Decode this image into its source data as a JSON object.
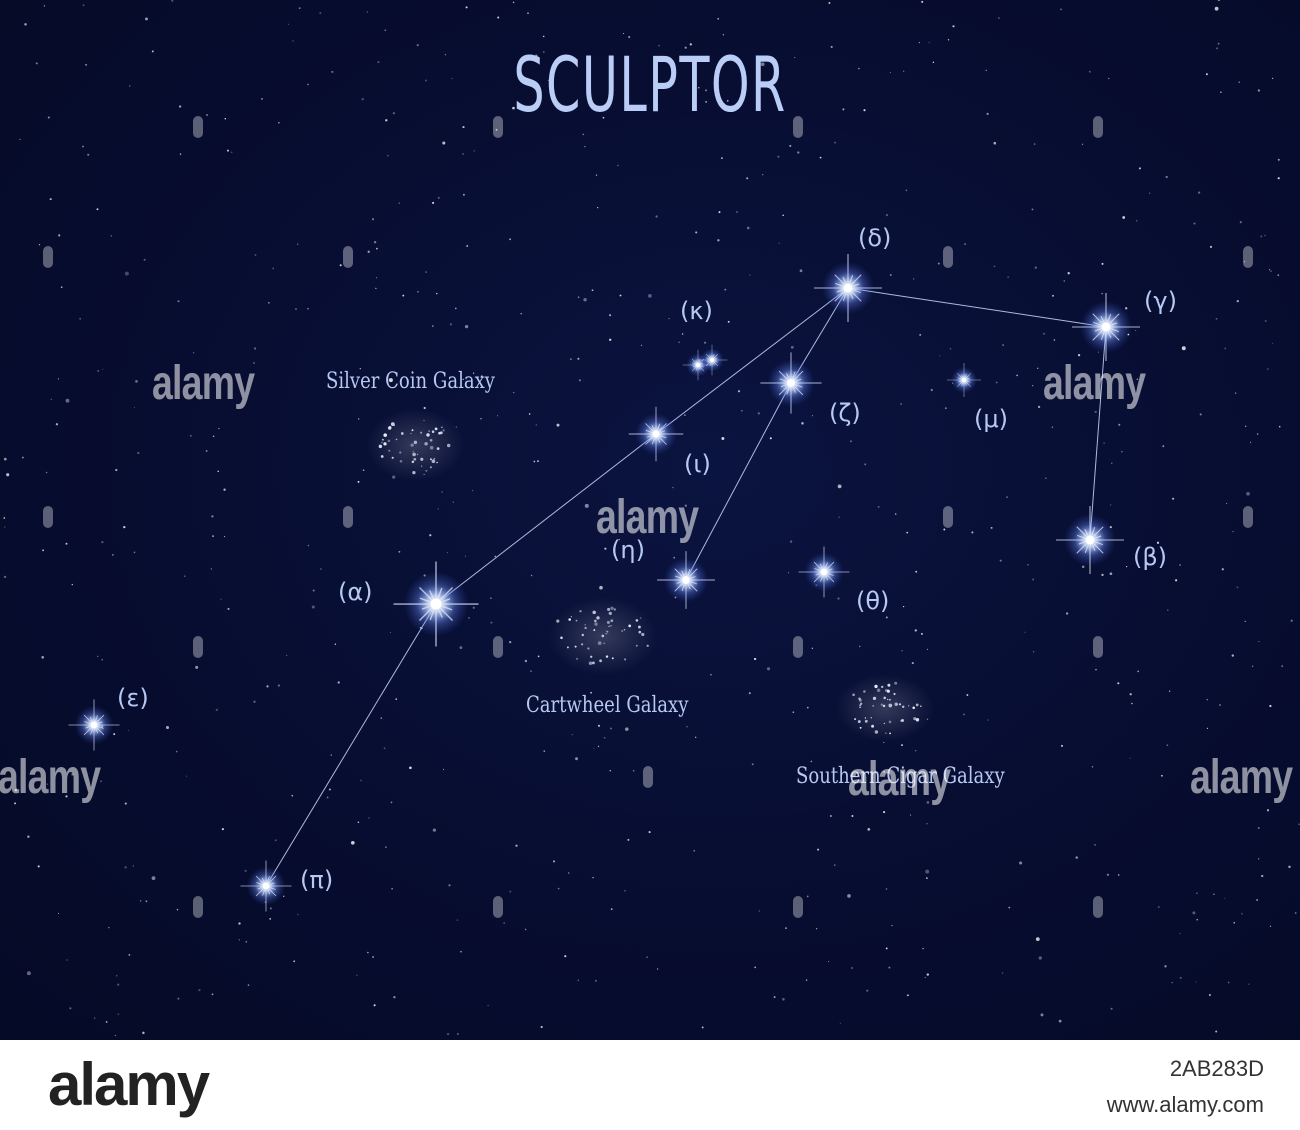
{
  "title": "SCULPTOR",
  "stars": [
    {
      "key": "alpha",
      "label": "(α)"
    },
    {
      "key": "beta",
      "label": "(β)"
    },
    {
      "key": "gamma",
      "label": "(γ)"
    },
    {
      "key": "delta",
      "label": "(δ)"
    },
    {
      "key": "epsilon",
      "label": "(ε)"
    },
    {
      "key": "zeta",
      "label": "(ζ)"
    },
    {
      "key": "eta",
      "label": "(η)"
    },
    {
      "key": "theta",
      "label": "(θ)"
    },
    {
      "key": "iota",
      "label": "(ι)"
    },
    {
      "key": "kappa",
      "label": "(κ)"
    },
    {
      "key": "mu",
      "label": "(μ)"
    },
    {
      "key": "pi",
      "label": "(π)"
    }
  ],
  "galaxies": [
    {
      "label": "Silver Coin Galaxy"
    },
    {
      "label": "Cartwheel Galaxy"
    },
    {
      "label": "Southern Cigar Galaxy"
    }
  ],
  "watermark": {
    "text": "alamy"
  },
  "footer": {
    "logo": "alamy",
    "image_id": "2AB283D",
    "url": "www.alamy.com"
  },
  "colors": {
    "sky": "#070d30",
    "label": "#b7c8f2",
    "star_core": "#ffffff",
    "star_glow": "#8fb0ff"
  }
}
